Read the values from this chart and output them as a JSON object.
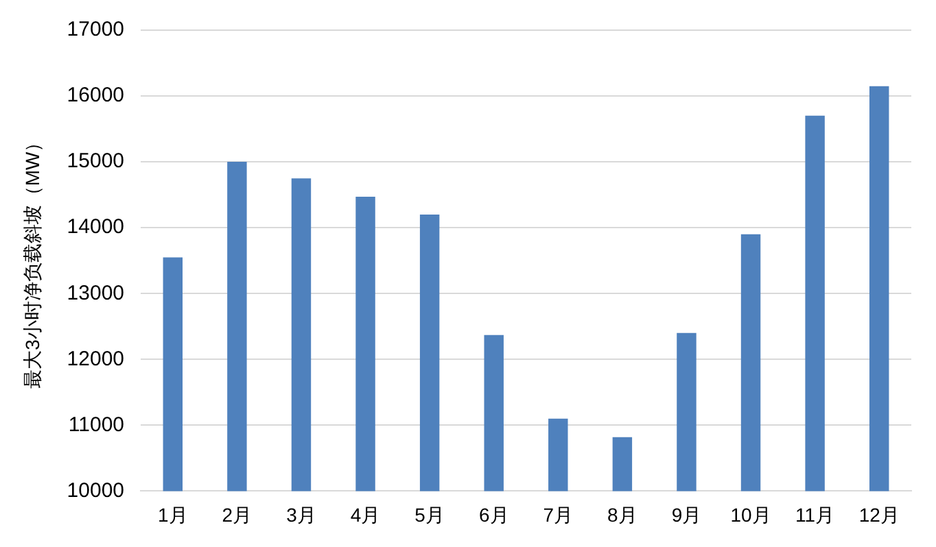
{
  "chart_data": {
    "type": "bar",
    "ylabel": "最大3小时净负载斜坡（MW）",
    "categories": [
      "1月",
      "2月",
      "3月",
      "4月",
      "5月",
      "6月",
      "7月",
      "8月",
      "9月",
      "10月",
      "11月",
      "12月"
    ],
    "values": [
      13550,
      15000,
      14750,
      14470,
      14200,
      12370,
      11100,
      10820,
      12400,
      13900,
      15700,
      16150
    ],
    "color": "#4f81bd",
    "ylim": [
      10000,
      17000
    ],
    "yticks": [
      10000,
      11000,
      12000,
      13000,
      14000,
      15000,
      16000,
      17000
    ],
    "grid": "y"
  }
}
